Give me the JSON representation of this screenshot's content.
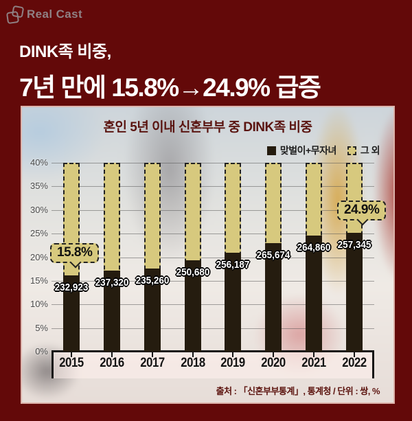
{
  "header": {
    "logo_text": "Real Cast"
  },
  "headline": {
    "line1": "DINK족 비중,",
    "line2": "7년 만에 15.8%→24.9% 급증"
  },
  "colors": {
    "page_background": "#630909",
    "headline_text": "#ffffff",
    "panel_border": "#dcb2aa",
    "chart_title_text": "#5a1410",
    "dink_bar": "#251c0f",
    "etc_bar": "#d7c97e",
    "callout_fill": "#d7c97e",
    "axis": "#151515"
  },
  "chart_data": {
    "type": "bar",
    "stacked": true,
    "title": "혼인 5년 이내 신혼부부 중 DINK족 비중",
    "categories": [
      "2015",
      "2016",
      "2017",
      "2018",
      "2019",
      "2020",
      "2021",
      "2022"
    ],
    "series": [
      {
        "name": "맞벌이+무자녀",
        "color": "#251c0f",
        "values_pct": [
          15.8,
          16.9,
          17.3,
          19.0,
          20.6,
          22.7,
          24.3,
          24.9
        ],
        "value_labels": [
          "232,923",
          "237,320",
          "235,260",
          "250,680",
          "256,187",
          "265,674",
          "264,860",
          "257,345"
        ]
      },
      {
        "name": "그 외",
        "color": "#d7c97e",
        "fills_to_pct": 40
      }
    ],
    "ylim": [
      0,
      40
    ],
    "yticks": [
      0,
      5,
      10,
      15,
      20,
      25,
      30,
      35,
      40
    ],
    "ytick_suffix": "%",
    "grid": true,
    "legend_position": "top-right",
    "annotations": [
      {
        "text": "15.8%",
        "target_year": "2015"
      },
      {
        "text": "24.9%",
        "target_year": "2022"
      }
    ],
    "source": "출처 : 「신혼부부통계」, 통계청 / 단위 : 쌍, %"
  }
}
